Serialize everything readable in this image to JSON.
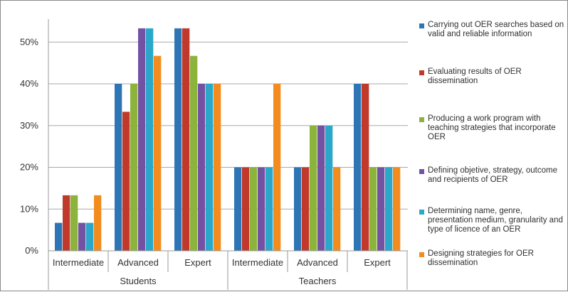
{
  "chart_data": {
    "type": "bar",
    "groups": [
      {
        "name": "Students",
        "categories": [
          "Intermediate",
          "Advanced",
          "Expert"
        ]
      },
      {
        "name": "Teachers",
        "categories": [
          "Intermediate",
          "Advanced",
          "Expert"
        ]
      }
    ],
    "series": [
      {
        "name": "Carrying out OER searches based on valid and reliable information",
        "color": "#2e75b6",
        "values": [
          6.7,
          40,
          53.3,
          20,
          20,
          40
        ]
      },
      {
        "name": "Evaluating results of OER dissemination",
        "color": "#c0392b",
        "values": [
          13.3,
          33.3,
          53.3,
          20,
          20,
          40
        ]
      },
      {
        "name": "Producing a work program with teaching strategies that incorporate OER",
        "color": "#8cb43c",
        "values": [
          13.3,
          40,
          46.7,
          20,
          30,
          20
        ]
      },
      {
        "name": "Defining objetive, strategy, outcome and recipients of OER",
        "color": "#7352a3",
        "values": [
          6.7,
          53.3,
          40,
          20,
          30,
          20
        ]
      },
      {
        "name": "Determining name, genre, presentation medium, granularity and type of licence of an OER",
        "color": "#2aa7c9",
        "values": [
          6.7,
          53.3,
          40,
          20,
          30,
          20
        ]
      },
      {
        "name": "Designing strategies for OER dissemination",
        "color": "#f28c1e",
        "values": [
          13.3,
          46.7,
          40,
          40,
          20,
          20
        ]
      }
    ],
    "yticks": [
      "0%",
      "10%",
      "20%",
      "30%",
      "40%",
      "50%"
    ],
    "ylim": [
      0,
      56
    ],
    "grid": true,
    "legend_position": "right"
  }
}
